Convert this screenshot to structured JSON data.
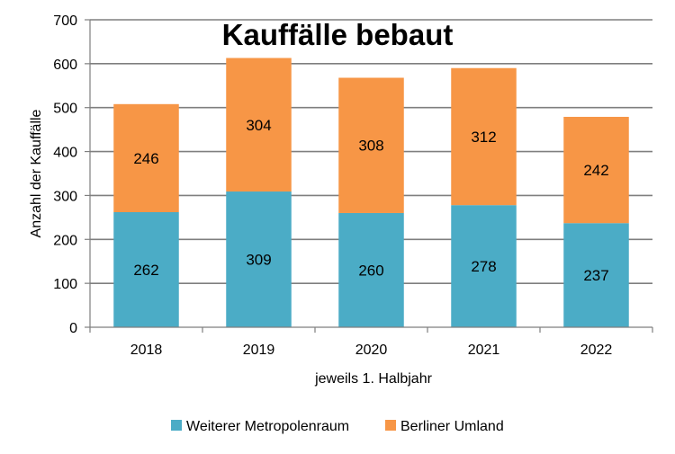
{
  "chart_data": {
    "type": "bar",
    "stacked": true,
    "title": "Kauffälle bebaut",
    "xlabel": "jeweils 1. Halbjahr",
    "ylabel": "Anzahl der Kauffälle",
    "categories": [
      "2018",
      "2019",
      "2020",
      "2021",
      "2022"
    ],
    "ylim": [
      0,
      700
    ],
    "yticks": [
      0,
      100,
      200,
      300,
      400,
      500,
      600,
      700
    ],
    "grid": true,
    "legend_position": "bottom",
    "series": [
      {
        "name": "Weiterer Metropolenraum",
        "values": [
          262,
          309,
          260,
          278,
          237
        ],
        "color": "#4bacc6"
      },
      {
        "name": "Berliner Umland",
        "values": [
          246,
          304,
          308,
          312,
          242
        ],
        "color": "#f79646"
      }
    ]
  }
}
